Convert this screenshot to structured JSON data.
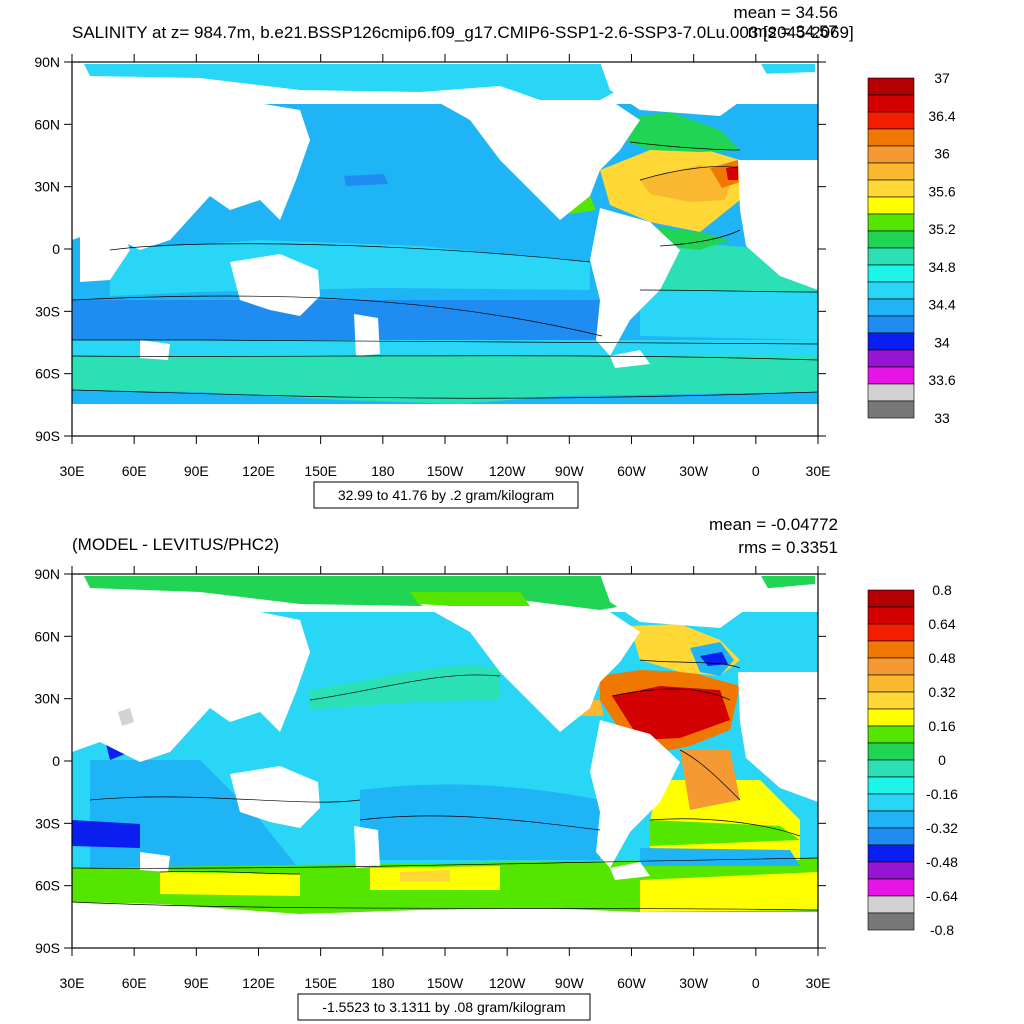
{
  "panels": [
    {
      "id": "top",
      "title_left": "SALINITY at z= 984.7m, b.e21.BSSP126cmip6.f09_g17.CMIP6-SSP1-2.6-SSP3-7.0Lu.003 [2045-2069]",
      "title_right_1": "mean = 34.56",
      "title_right_2": "rms = 34.57",
      "contour_info": "32.99 to 41.76 by .2 gram/kilogram",
      "lat_labels": [
        "90N",
        "60N",
        "30N",
        "0",
        "30S",
        "60S",
        "90S"
      ],
      "lon_labels": [
        "30E",
        "60E",
        "90E",
        "120E",
        "150E",
        "180",
        "150W",
        "120W",
        "90W",
        "60W",
        "30W",
        "0",
        "30E"
      ],
      "colorbar": {
        "colors": [
          "#b40000",
          "#d20000",
          "#f51e00",
          "#f07800",
          "#f59a33",
          "#f9b830",
          "#ffd835",
          "#ffff00",
          "#55e600",
          "#22d454",
          "#2be0b4",
          "#1ef5e8",
          "#29d6f5",
          "#1eb4f5",
          "#1e8cf0",
          "#0a1ef0",
          "#9614d2",
          "#e614e6",
          "#d2d2d2",
          "#787878"
        ],
        "labels": [
          "37",
          "36.4",
          "36",
          "35.6",
          "35.2",
          "34.8",
          "34.4",
          "34",
          "33.6",
          "33"
        ]
      }
    },
    {
      "id": "bottom",
      "title_left": "(MODEL - LEVITUS/PHC2)",
      "title_right_1": "mean = -0.04772",
      "title_right_2": "rms = 0.3351",
      "contour_info": "-1.5523 to 3.1311 by .08 gram/kilogram",
      "lat_labels": [
        "90N",
        "60N",
        "30N",
        "0",
        "30S",
        "60S",
        "90S"
      ],
      "lon_labels": [
        "30E",
        "60E",
        "90E",
        "120E",
        "150E",
        "180",
        "150W",
        "120W",
        "90W",
        "60W",
        "30W",
        "0",
        "30E"
      ],
      "colorbar": {
        "colors": [
          "#b40000",
          "#d20000",
          "#f51e00",
          "#f07800",
          "#f59a33",
          "#f9b830",
          "#ffd835",
          "#ffff00",
          "#55e600",
          "#22d454",
          "#2be0b4",
          "#1ef5e8",
          "#29d6f5",
          "#1eb4f5",
          "#1e8cf0",
          "#0a1ef0",
          "#9614d2",
          "#e614e6",
          "#d2d2d2",
          "#787878"
        ],
        "labels": [
          "0.8",
          "0.64",
          "0.48",
          "0.32",
          "0.16",
          "0",
          "-0.16",
          "-0.32",
          "-0.48",
          "-0.64",
          "-0.8"
        ]
      }
    }
  ]
}
